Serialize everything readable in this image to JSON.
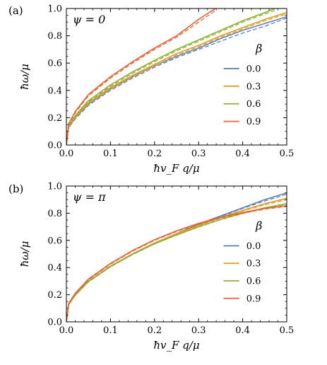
{
  "chart_data": [
    {
      "type": "line",
      "panel_label": "(a)",
      "annotation": "ψ = 0",
      "xlabel": "ħv_F q/μ",
      "ylabel": "ħω/μ",
      "xlim": [
        0,
        0.5
      ],
      "ylim": [
        0,
        1.0
      ],
      "x_ticks": [
        "0.0",
        "0.1",
        "0.2",
        "0.3",
        "0.4",
        "0.5"
      ],
      "y_ticks": [
        "0.0",
        "0.2",
        "0.4",
        "0.6",
        "0.8",
        "1.0"
      ],
      "legend_title": "β",
      "legend_position": "right",
      "series": [
        {
          "name": "0.0",
          "color": "#5e81b5",
          "x": [
            0,
            0.005,
            0.02,
            0.05,
            0.1,
            0.15,
            0.2,
            0.25,
            0.3,
            0.35,
            0.4,
            0.45,
            0.5
          ],
          "solid": [
            0,
            0.13,
            0.2,
            0.3,
            0.41,
            0.5,
            0.58,
            0.65,
            0.71,
            0.78,
            0.84,
            0.89,
            0.94
          ],
          "dashed": [
            0,
            0.125,
            0.19,
            0.29,
            0.4,
            0.49,
            0.57,
            0.64,
            0.7,
            0.76,
            0.82,
            0.87,
            0.93
          ]
        },
        {
          "name": "0.3",
          "color": "#e19c24",
          "x": [
            0,
            0.005,
            0.02,
            0.05,
            0.1,
            0.15,
            0.2,
            0.25,
            0.3,
            0.35,
            0.4,
            0.45,
            0.5
          ],
          "solid": [
            0,
            0.133,
            0.205,
            0.31,
            0.42,
            0.51,
            0.59,
            0.67,
            0.73,
            0.8,
            0.86,
            0.92,
            0.97
          ],
          "dashed": [
            0,
            0.128,
            0.197,
            0.3,
            0.41,
            0.5,
            0.58,
            0.66,
            0.72,
            0.79,
            0.85,
            0.91,
            0.96
          ]
        },
        {
          "name": "0.6",
          "color": "#8fb032",
          "x": [
            0,
            0.005,
            0.02,
            0.05,
            0.1,
            0.15,
            0.2,
            0.25,
            0.3,
            0.35,
            0.4,
            0.45,
            0.473
          ],
          "solid": [
            0,
            0.138,
            0.215,
            0.325,
            0.44,
            0.535,
            0.62,
            0.7,
            0.77,
            0.84,
            0.91,
            0.97,
            1.0
          ],
          "dashed": [
            0,
            0.132,
            0.207,
            0.315,
            0.43,
            0.525,
            0.61,
            0.69,
            0.76,
            0.83,
            0.9,
            0.96,
            0.985
          ]
        },
        {
          "name": "0.9",
          "color": "#eb6235",
          "x": [
            0,
            0.005,
            0.02,
            0.05,
            0.1,
            0.15,
            0.2,
            0.25,
            0.3,
            0.338
          ],
          "solid": [
            0,
            0.155,
            0.245,
            0.37,
            0.5,
            0.61,
            0.71,
            0.8,
            0.92,
            1.0
          ],
          "dashed": [
            0,
            0.148,
            0.236,
            0.36,
            0.49,
            0.6,
            0.7,
            0.79,
            0.9,
            0.985
          ]
        }
      ]
    },
    {
      "type": "line",
      "panel_label": "(b)",
      "annotation": "ψ = π",
      "xlabel": "ħv_F q/μ",
      "ylabel": "ħω/μ",
      "xlim": [
        0,
        0.5
      ],
      "ylim": [
        0,
        1.0
      ],
      "x_ticks": [
        "0.0",
        "0.1",
        "0.2",
        "0.3",
        "0.4",
        "0.5"
      ],
      "y_ticks": [
        "0.0",
        "0.2",
        "0.4",
        "0.6",
        "0.8",
        "1.0"
      ],
      "legend_title": "β",
      "legend_position": "right",
      "series": [
        {
          "name": "0.0",
          "color": "#5e81b5",
          "x": [
            0,
            0.005,
            0.02,
            0.05,
            0.1,
            0.15,
            0.2,
            0.25,
            0.3,
            0.35,
            0.4,
            0.45,
            0.5
          ],
          "solid": [
            0,
            0.13,
            0.2,
            0.3,
            0.41,
            0.5,
            0.58,
            0.65,
            0.72,
            0.78,
            0.84,
            0.9,
            0.95
          ],
          "dashed": [
            0,
            0.125,
            0.195,
            0.295,
            0.405,
            0.495,
            0.575,
            0.645,
            0.715,
            0.775,
            0.835,
            0.89,
            0.94
          ]
        },
        {
          "name": "0.3",
          "color": "#e19c24",
          "x": [
            0,
            0.005,
            0.02,
            0.05,
            0.1,
            0.15,
            0.2,
            0.25,
            0.3,
            0.35,
            0.4,
            0.45,
            0.5
          ],
          "solid": [
            0,
            0.13,
            0.2,
            0.3,
            0.41,
            0.5,
            0.58,
            0.65,
            0.71,
            0.77,
            0.82,
            0.87,
            0.91
          ],
          "dashed": [
            0,
            0.126,
            0.196,
            0.296,
            0.406,
            0.497,
            0.577,
            0.647,
            0.707,
            0.766,
            0.816,
            0.862,
            0.9
          ]
        },
        {
          "name": "0.6",
          "color": "#8fb032",
          "x": [
            0,
            0.005,
            0.02,
            0.05,
            0.1,
            0.15,
            0.2,
            0.25,
            0.3,
            0.35,
            0.4,
            0.45,
            0.5
          ],
          "solid": [
            0,
            0.128,
            0.197,
            0.297,
            0.407,
            0.497,
            0.575,
            0.64,
            0.7,
            0.755,
            0.8,
            0.84,
            0.87
          ],
          "dashed": [
            0,
            0.126,
            0.195,
            0.295,
            0.405,
            0.495,
            0.573,
            0.638,
            0.698,
            0.752,
            0.797,
            0.837,
            0.866
          ]
        },
        {
          "name": "0.9",
          "color": "#eb6235",
          "x": [
            0,
            0.005,
            0.02,
            0.05,
            0.1,
            0.15,
            0.2,
            0.25,
            0.3,
            0.35,
            0.4,
            0.45,
            0.5
          ],
          "solid": [
            0,
            0.135,
            0.21,
            0.315,
            0.43,
            0.525,
            0.605,
            0.67,
            0.725,
            0.77,
            0.805,
            0.835,
            0.855
          ],
          "dashed": [
            0,
            0.13,
            0.205,
            0.31,
            0.425,
            0.52,
            0.6,
            0.665,
            0.72,
            0.765,
            0.8,
            0.83,
            0.85
          ]
        }
      ]
    }
  ]
}
